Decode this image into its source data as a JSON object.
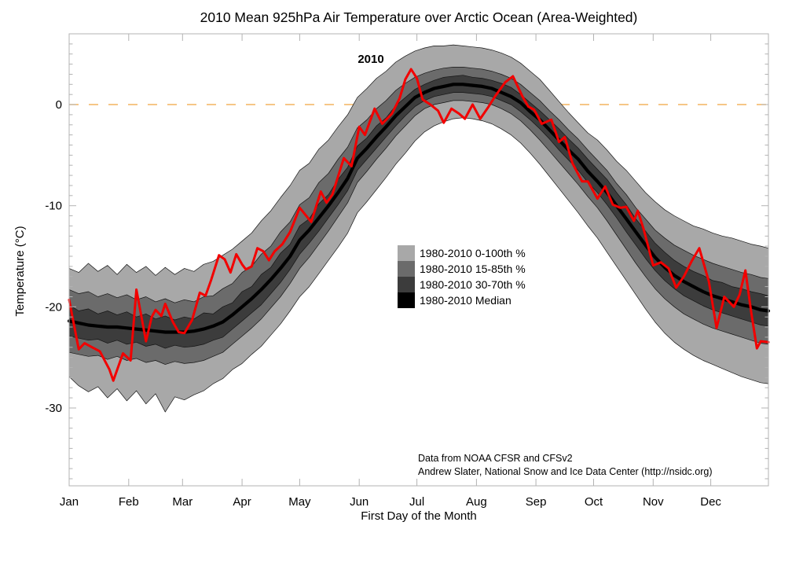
{
  "attribution": {
    "line1": "Data from NOAA CFSR and CFSv2",
    "line2": "Andrew Slater, National Snow and Ice Data Center (http://nsidc.org)",
    "color": "#3c3ccc"
  },
  "legend": {
    "items": [
      {
        "label": "1980-2010 0-100th %",
        "swatch_color": "#a8a8a8",
        "text_color": "#9f9f9f"
      },
      {
        "label": "1980-2010 15-85th %",
        "swatch_color": "#6b6b6b",
        "text_color": "#686868"
      },
      {
        "label": "1980-2010 30-70th %",
        "swatch_color": "#3c3c3c",
        "text_color": "#3a3a3a"
      },
      {
        "label": "1980-2010 Median",
        "swatch_color": "#000000",
        "text_color": "#000000"
      }
    ]
  },
  "colors": {
    "frame": "#b3b3b3",
    "zero_line": "#f3b45e",
    "band_outline": "#141414",
    "red_line": "#f20000",
    "median_line": "#000000"
  },
  "chart_data": {
    "type": "line",
    "title": "2010 Mean 925hPa Air Temperature over Arctic Ocean (Area-Weighted)",
    "xlabel": "First Day of the Month",
    "ylabel": "Temperature (°C)",
    "annotation": "2010",
    "x_range": [
      0,
      364
    ],
    "ylim": [
      -37.7,
      7.0
    ],
    "x_tick_days": [
      0,
      31,
      59,
      90,
      120,
      151,
      181,
      212,
      243,
      273,
      304,
      334
    ],
    "x_tick_labels": [
      "Jan",
      "Feb",
      "Mar",
      "Apr",
      "May",
      "Jun",
      "Jul",
      "Aug",
      "Sep",
      "Oct",
      "Nov",
      "Dec"
    ],
    "y_major_ticks": [
      0,
      -10,
      -20,
      -30
    ],
    "y_minor_step": 1,
    "zero_reference": 0,
    "days": [
      0,
      5,
      10,
      15,
      20,
      25,
      30,
      35,
      40,
      45,
      50,
      55,
      60,
      65,
      70,
      75,
      80,
      85,
      90,
      95,
      100,
      105,
      110,
      115,
      120,
      125,
      130,
      135,
      140,
      145,
      150,
      155,
      160,
      165,
      170,
      175,
      180,
      185,
      190,
      195,
      200,
      205,
      210,
      215,
      220,
      225,
      230,
      235,
      240,
      245,
      250,
      255,
      260,
      265,
      270,
      275,
      280,
      285,
      290,
      295,
      300,
      305,
      310,
      315,
      320,
      325,
      330,
      335,
      340,
      345,
      350,
      355,
      360,
      364
    ],
    "bands": [
      {
        "name": "0-100th",
        "label": "1980-2010 0-100th %",
        "color": "#a8a8a8",
        "upper": [
          -16.2,
          -16.6,
          -15.7,
          -16.5,
          -15.9,
          -16.8,
          -15.8,
          -16.6,
          -16.0,
          -16.9,
          -16.1,
          -16.8,
          -16.2,
          -16.5,
          -15.8,
          -15.5,
          -14.9,
          -14.3,
          -13.5,
          -12.7,
          -11.5,
          -10.5,
          -9.2,
          -8.0,
          -6.5,
          -5.8,
          -4.4,
          -3.5,
          -2.2,
          -1.0,
          0.7,
          1.6,
          2.6,
          3.3,
          4.2,
          4.8,
          5.3,
          5.6,
          5.8,
          5.8,
          5.9,
          5.8,
          5.7,
          5.6,
          5.4,
          5.1,
          4.7,
          4.1,
          3.3,
          2.5,
          1.4,
          0.3,
          -0.8,
          -1.8,
          -2.8,
          -3.5,
          -4.5,
          -5.6,
          -6.5,
          -7.6,
          -8.7,
          -9.6,
          -10.4,
          -11.0,
          -11.5,
          -12.0,
          -12.3,
          -12.7,
          -13.0,
          -13.2,
          -13.5,
          -13.8,
          -14.0,
          -14.2
        ],
        "lower": [
          -26.9,
          -27.8,
          -28.4,
          -27.9,
          -29.0,
          -28.1,
          -29.3,
          -28.3,
          -29.6,
          -28.6,
          -30.4,
          -28.9,
          -29.2,
          -28.7,
          -28.3,
          -27.6,
          -27.1,
          -26.2,
          -25.6,
          -24.7,
          -23.9,
          -22.8,
          -21.7,
          -20.4,
          -19.0,
          -18.0,
          -16.7,
          -15.4,
          -14.1,
          -12.7,
          -10.7,
          -9.6,
          -8.4,
          -7.2,
          -5.9,
          -4.8,
          -3.6,
          -2.7,
          -2.1,
          -1.7,
          -1.4,
          -1.3,
          -1.4,
          -1.6,
          -1.9,
          -2.4,
          -3.0,
          -3.8,
          -4.8,
          -5.9,
          -7.1,
          -8.3,
          -9.5,
          -10.7,
          -12.0,
          -13.2,
          -14.6,
          -16.0,
          -17.4,
          -18.8,
          -20.2,
          -21.5,
          -22.6,
          -23.5,
          -24.2,
          -24.8,
          -25.3,
          -25.7,
          -26.1,
          -26.5,
          -26.9,
          -27.2,
          -27.5,
          -27.6
        ]
      },
      {
        "name": "15-85th",
        "label": "1980-2010 15-85th %",
        "color": "#6b6b6b",
        "upper": [
          -18.3,
          -18.7,
          -18.5,
          -19.0,
          -18.7,
          -19.1,
          -18.8,
          -19.3,
          -19.0,
          -19.5,
          -19.2,
          -19.6,
          -19.3,
          -19.5,
          -19.0,
          -18.9,
          -18.2,
          -17.7,
          -16.6,
          -16.0,
          -14.8,
          -14.0,
          -12.6,
          -11.6,
          -9.9,
          -9.2,
          -7.7,
          -6.8,
          -5.4,
          -4.2,
          -2.3,
          -1.5,
          -0.4,
          0.4,
          1.4,
          2.1,
          2.7,
          3.1,
          3.4,
          3.6,
          3.7,
          3.7,
          3.6,
          3.5,
          3.3,
          3.0,
          2.6,
          2.0,
          1.2,
          0.4,
          -0.6,
          -1.5,
          -2.5,
          -3.4,
          -4.5,
          -5.5,
          -6.5,
          -7.8,
          -8.9,
          -10.2,
          -11.3,
          -12.4,
          -13.2,
          -13.9,
          -14.4,
          -14.9,
          -15.3,
          -15.7,
          -16.0,
          -16.3,
          -16.6,
          -16.8,
          -17.1,
          -17.2
        ],
        "lower": [
          -24.5,
          -24.7,
          -24.9,
          -24.8,
          -25.2,
          -24.9,
          -25.3,
          -25.1,
          -25.5,
          -25.3,
          -25.7,
          -25.4,
          -25.6,
          -25.5,
          -25.3,
          -24.9,
          -24.5,
          -23.7,
          -22.9,
          -22.1,
          -21.2,
          -20.1,
          -19.0,
          -17.7,
          -16.2,
          -15.1,
          -13.8,
          -12.5,
          -11.1,
          -9.7,
          -7.7,
          -6.6,
          -5.4,
          -4.3,
          -3.1,
          -2.1,
          -1.1,
          -0.4,
          0.0,
          0.2,
          0.4,
          0.4,
          0.3,
          0.2,
          0.0,
          -0.4,
          -0.9,
          -1.6,
          -2.5,
          -3.5,
          -4.6,
          -5.7,
          -6.8,
          -7.9,
          -9.1,
          -10.2,
          -11.5,
          -12.9,
          -14.3,
          -15.7,
          -17.0,
          -18.2,
          -19.2,
          -20.0,
          -20.7,
          -21.2,
          -21.7,
          -22.1,
          -22.4,
          -22.7,
          -23.0,
          -23.3,
          -23.6,
          -23.7
        ]
      },
      {
        "name": "30-70th",
        "label": "1980-2010 30-70th %",
        "color": "#3c3c3c",
        "upper": [
          -19.8,
          -20.4,
          -20.2,
          -20.7,
          -20.4,
          -20.8,
          -20.5,
          -21.0,
          -20.7,
          -21.2,
          -20.9,
          -21.3,
          -21.0,
          -21.2,
          -20.6,
          -20.7,
          -20.0,
          -19.6,
          -18.5,
          -18.0,
          -16.8,
          -16.1,
          -14.7,
          -13.8,
          -12.0,
          -11.3,
          -9.8,
          -8.9,
          -7.4,
          -6.2,
          -4.1,
          -3.3,
          -2.1,
          -1.3,
          -0.1,
          0.7,
          1.5,
          2.0,
          2.4,
          2.7,
          2.8,
          2.9,
          2.7,
          2.6,
          2.4,
          2.1,
          1.7,
          1.0,
          0.2,
          -0.6,
          -1.5,
          -2.4,
          -3.4,
          -4.3,
          -5.4,
          -6.4,
          -7.4,
          -8.7,
          -9.9,
          -11.3,
          -12.5,
          -13.7,
          -14.6,
          -15.4,
          -16.0,
          -16.5,
          -16.9,
          -17.4,
          -17.6,
          -18.0,
          -18.2,
          -18.5,
          -18.7,
          -18.9
        ],
        "lower": [
          -22.9,
          -23.1,
          -23.3,
          -23.2,
          -23.6,
          -23.3,
          -23.7,
          -23.5,
          -23.9,
          -23.7,
          -24.1,
          -23.8,
          -24.0,
          -23.9,
          -23.7,
          -23.3,
          -23.0,
          -22.2,
          -21.4,
          -20.6,
          -19.8,
          -18.7,
          -17.6,
          -16.3,
          -14.8,
          -13.7,
          -12.5,
          -11.2,
          -9.9,
          -8.5,
          -6.5,
          -5.4,
          -4.3,
          -3.2,
          -2.1,
          -1.1,
          -0.2,
          0.4,
          0.8,
          1.0,
          1.2,
          1.2,
          1.1,
          1.0,
          0.8,
          0.4,
          0.0,
          -0.7,
          -1.5,
          -2.4,
          -3.4,
          -4.5,
          -5.5,
          -6.5,
          -7.7,
          -8.7,
          -9.9,
          -11.2,
          -12.6,
          -13.9,
          -15.2,
          -16.4,
          -17.4,
          -18.2,
          -18.9,
          -19.4,
          -19.9,
          -20.3,
          -20.6,
          -20.9,
          -21.2,
          -21.5,
          -21.8,
          -21.9
        ]
      }
    ],
    "median": {
      "label": "1980-2010 Median",
      "color": "#000000",
      "values": [
        -21.4,
        -21.6,
        -21.8,
        -21.9,
        -22.0,
        -22.0,
        -22.1,
        -22.2,
        -22.3,
        -22.4,
        -22.5,
        -22.5,
        -22.5,
        -22.4,
        -22.2,
        -21.9,
        -21.5,
        -20.8,
        -20.0,
        -19.2,
        -18.3,
        -17.3,
        -16.2,
        -15.0,
        -13.4,
        -12.4,
        -11.2,
        -10.0,
        -8.7,
        -7.3,
        -5.3,
        -4.3,
        -3.2,
        -2.2,
        -1.1,
        -0.2,
        0.7,
        1.2,
        1.6,
        1.8,
        2.0,
        2.0,
        1.9,
        1.8,
        1.6,
        1.2,
        0.8,
        0.2,
        -0.7,
        -1.5,
        -2.5,
        -3.5,
        -4.5,
        -5.4,
        -6.6,
        -7.6,
        -8.7,
        -10.0,
        -11.3,
        -12.6,
        -13.9,
        -15.1,
        -16.1,
        -16.9,
        -17.5,
        -18.0,
        -18.5,
        -18.9,
        -19.2,
        -19.5,
        -19.8,
        -20.0,
        -20.3,
        -20.4
      ]
    },
    "series_2010": {
      "label": "2010",
      "color": "#f20000",
      "days": [
        0,
        5,
        8,
        12,
        16,
        21,
        23,
        28,
        32,
        35,
        40,
        43,
        45,
        48,
        50,
        54,
        57,
        60,
        64,
        68,
        71,
        74,
        78,
        81,
        84,
        87,
        90,
        92,
        95,
        98,
        101,
        104,
        107,
        111,
        115,
        120,
        126,
        131,
        134,
        137,
        143,
        147,
        151,
        154,
        159,
        163,
        168,
        172,
        175,
        178,
        181,
        184,
        188,
        192,
        195,
        199,
        203,
        206,
        210,
        214,
        218,
        222,
        227,
        231,
        236,
        239,
        242,
        246,
        251,
        255,
        258,
        262,
        267,
        270,
        275,
        279,
        283,
        287,
        290,
        294,
        296,
        299,
        304,
        308,
        312,
        316,
        320,
        324,
        328,
        333,
        337,
        341,
        346,
        349,
        352,
        355,
        358,
        360,
        364
      ],
      "values": [
        -19.3,
        -24.2,
        -23.6,
        -24.0,
        -24.4,
        -26.2,
        -27.3,
        -24.6,
        -25.3,
        -18.3,
        -23.4,
        -21.0,
        -20.3,
        -20.9,
        -19.7,
        -21.5,
        -22.5,
        -22.6,
        -21.3,
        -18.6,
        -18.9,
        -17.3,
        -14.9,
        -15.3,
        -16.6,
        -14.8,
        -15.8,
        -16.3,
        -16.0,
        -14.2,
        -14.5,
        -15.4,
        -14.5,
        -13.8,
        -12.6,
        -10.2,
        -11.6,
        -8.6,
        -9.7,
        -8.9,
        -5.3,
        -6.1,
        -2.2,
        -3.0,
        -0.4,
        -1.9,
        -0.9,
        0.6,
        2.5,
        3.5,
        2.6,
        0.5,
        0.0,
        -0.6,
        -1.8,
        -0.4,
        -0.9,
        -1.4,
        0.0,
        -1.4,
        -0.3,
        0.9,
        2.2,
        2.8,
        0.8,
        -0.2,
        -0.5,
        -1.9,
        -1.5,
        -3.7,
        -3.2,
        -5.8,
        -7.6,
        -7.6,
        -9.3,
        -8.1,
        -9.9,
        -10.2,
        -10.1,
        -11.5,
        -10.5,
        -12.3,
        -15.9,
        -15.6,
        -16.2,
        -18.1,
        -17.0,
        -15.5,
        -14.2,
        -17.5,
        -22.1,
        -19.0,
        -20.0,
        -18.8,
        -16.4,
        -20.5,
        -24.1,
        -23.4,
        -23.5
      ]
    }
  }
}
